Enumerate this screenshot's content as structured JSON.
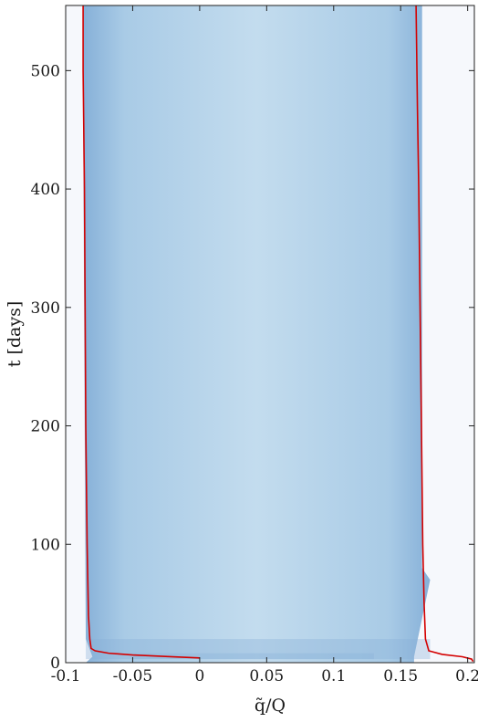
{
  "chart_data": {
    "type": "heatmap",
    "title": "",
    "xlabel": "q̃/Q",
    "ylabel": "t [days]",
    "xlim": [
      -0.1,
      0.205
    ],
    "ylim": [
      0,
      555
    ],
    "xticks": [
      -0.1,
      -0.05,
      0,
      0.05,
      0.1,
      0.15,
      0.2
    ],
    "xtick_labels": [
      "-0.1",
      "-0.05",
      "0",
      "0.05",
      "0.1",
      "0.15",
      "0.2"
    ],
    "yticks": [
      0,
      100,
      200,
      300,
      400,
      500
    ],
    "ytick_labels": [
      "0",
      "100",
      "200",
      "300",
      "400",
      "500"
    ],
    "grid": false,
    "colors": {
      "background": "#f6f8fc",
      "band_light": "#c3dcee",
      "band_dark": "#86b0d8",
      "boundary_line": "#d40000"
    },
    "band": {
      "left_edge": [
        [
          0,
          -0.085
        ],
        [
          5,
          -0.08
        ],
        [
          20,
          -0.085
        ],
        [
          470,
          -0.087
        ],
        [
          555,
          -0.087
        ]
      ],
      "right_edge": [
        [
          0,
          0.16
        ],
        [
          5,
          0.16
        ],
        [
          70,
          0.172
        ],
        [
          80,
          0.166
        ],
        [
          555,
          0.166
        ]
      ]
    },
    "series": [
      {
        "values": [
          [
            -0.087,
            555
          ],
          [
            -0.087,
            500
          ],
          [
            -0.086,
            400
          ],
          [
            -0.0855,
            300
          ],
          [
            -0.085,
            200
          ],
          [
            -0.084,
            100
          ],
          [
            -0.083,
            40
          ],
          [
            -0.082,
            20
          ],
          [
            -0.081,
            12
          ],
          [
            -0.078,
            10
          ],
          [
            -0.068,
            8
          ],
          [
            -0.05,
            6.5
          ],
          [
            -0.02,
            5
          ],
          [
            0,
            4
          ]
        ]
      },
      {
        "values": [
          [
            0.1615,
            555
          ],
          [
            0.1625,
            470
          ],
          [
            0.1635,
            400
          ],
          [
            0.1645,
            300
          ],
          [
            0.1655,
            200
          ],
          [
            0.1665,
            100
          ],
          [
            0.1675,
            50
          ],
          [
            0.1685,
            20
          ],
          [
            0.171,
            10
          ],
          [
            0.181,
            7
          ],
          [
            0.196,
            5
          ],
          [
            0.203,
            3
          ],
          [
            0.204,
            1
          ]
        ]
      }
    ]
  }
}
